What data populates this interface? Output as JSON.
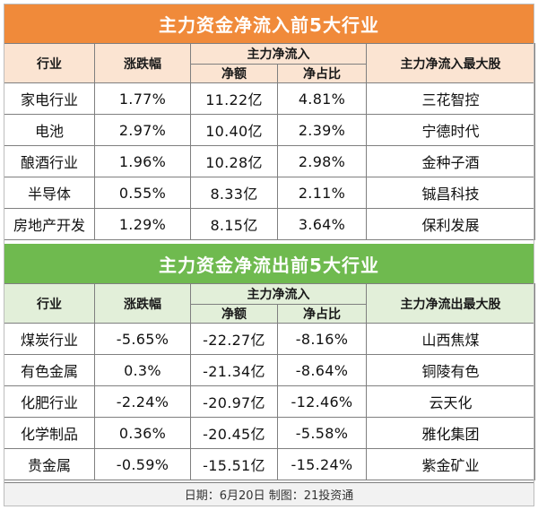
{
  "inflow": {
    "title": "主力资金净流入前5大行业",
    "headers": {
      "industry": "行业",
      "change": "涨跌幅",
      "main_flow": "主力净流入",
      "net_amount": "净额",
      "net_ratio": "净占比",
      "top_stock": "主力净流入最大股"
    },
    "rows": [
      {
        "industry": "家电行业",
        "change": "1.77%",
        "net_amount": "11.22亿",
        "net_ratio": "4.81%",
        "top_stock": "三花智控"
      },
      {
        "industry": "电池",
        "change": "2.97%",
        "net_amount": "10.40亿",
        "net_ratio": "2.39%",
        "top_stock": "宁德时代"
      },
      {
        "industry": "酿酒行业",
        "change": "1.96%",
        "net_amount": "10.28亿",
        "net_ratio": "2.98%",
        "top_stock": "金种子酒"
      },
      {
        "industry": "半导体",
        "change": "0.55%",
        "net_amount": "8.33亿",
        "net_ratio": "2.11%",
        "top_stock": "铖昌科技"
      },
      {
        "industry": "房地产开发",
        "change": "1.29%",
        "net_amount": "8.15亿",
        "net_ratio": "3.64%",
        "top_stock": "保利发展"
      }
    ]
  },
  "outflow": {
    "title": "主力资金净流出前5大行业",
    "headers": {
      "industry": "行业",
      "change": "涨跌幅",
      "main_flow": "主力净流入",
      "net_amount": "净额",
      "net_ratio": "净占比",
      "top_stock": "主力净流出最大股"
    },
    "rows": [
      {
        "industry": "煤炭行业",
        "change": "-5.65%",
        "net_amount": "-22.27亿",
        "net_ratio": "-8.16%",
        "top_stock": "山西焦煤"
      },
      {
        "industry": "有色金属",
        "change": "0.3%",
        "net_amount": "-21.34亿",
        "net_ratio": "-8.64%",
        "top_stock": "铜陵有色"
      },
      {
        "industry": "化肥行业",
        "change": "-2.24%",
        "net_amount": "-20.97亿",
        "net_ratio": "-12.46%",
        "top_stock": "云天化"
      },
      {
        "industry": "化学制品",
        "change": "0.36%",
        "net_amount": "-20.45亿",
        "net_ratio": "-5.58%",
        "top_stock": "雅化集团"
      },
      {
        "industry": "贵金属",
        "change": "-0.59%",
        "net_amount": "-15.51亿",
        "net_ratio": "-15.24%",
        "top_stock": "紫金矿业"
      }
    ]
  },
  "footer": "日期：6月20日 制图：21投资通",
  "colors": {
    "inflow_banner": "#f08a3a",
    "inflow_header": "#fbe4d2",
    "outflow_banner": "#6fba4f",
    "outflow_header": "#e2efd9"
  }
}
